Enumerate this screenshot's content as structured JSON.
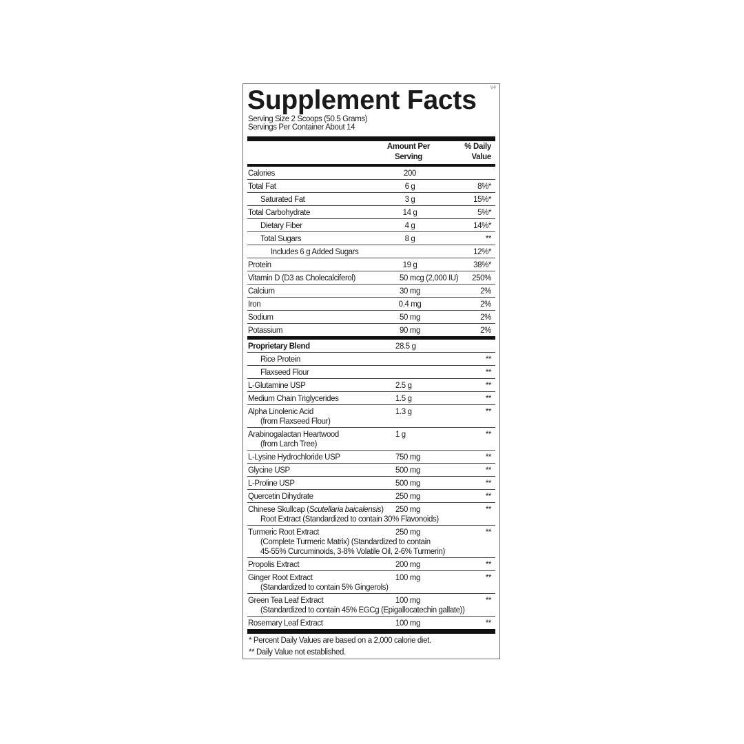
{
  "label": {
    "title": "Supplement Facts",
    "version": "V4",
    "serving_size": "Serving Size 2 Scoops (50.5 Grams)",
    "servings_per_container": "Servings Per Container  About 14",
    "header": {
      "amount_line1": "Amount Per",
      "amount_line2": "Serving",
      "dv_line1": "% Daily",
      "dv_line2": "Value"
    },
    "nutrients": [
      {
        "name": "Calories",
        "amount": "200",
        "dv": "",
        "indent": 0
      },
      {
        "name": "Total Fat",
        "amount": "6 g",
        "dv": "8%*",
        "indent": 0
      },
      {
        "name": "Saturated Fat",
        "amount": "3 g",
        "dv": "15%*",
        "indent": 1
      },
      {
        "name": "Total Carbohydrate",
        "amount": "14 g",
        "dv": "5%*",
        "indent": 0
      },
      {
        "name": "Dietary Fiber",
        "amount": "4 g",
        "dv": "14%*",
        "indent": 1
      },
      {
        "name": "Total Sugars",
        "amount": "8 g",
        "dv": "**",
        "indent": 1
      },
      {
        "name": "Includes 6 g Added Sugars",
        "amount": "",
        "dv": "12%*",
        "indent": 2
      },
      {
        "name": "Protein",
        "amount": "19 g",
        "dv": "38%*",
        "indent": 0
      },
      {
        "name": "Vitamin D (D3 as Cholecalciferol)",
        "amount": "50 mcg (2,000 IU)",
        "dv": "250%",
        "indent": 0
      },
      {
        "name": "Calcium",
        "amount": "30 mg",
        "dv": "2%",
        "indent": 0
      },
      {
        "name": "Iron",
        "amount": "0.4 mg",
        "dv": "2%",
        "indent": 0
      },
      {
        "name": "Sodium",
        "amount": "50 mg",
        "dv": "2%",
        "indent": 0
      },
      {
        "name": "Potassium",
        "amount": "90 mg",
        "dv": "2%",
        "indent": 0
      }
    ],
    "blend": [
      {
        "name": "Proprietary Blend",
        "amount": "28.5 g",
        "dv": "",
        "indent": 0,
        "bold": true
      },
      {
        "name": "Rice Protein",
        "amount": "",
        "dv": "**",
        "indent": 1
      },
      {
        "name": "Flaxseed Flour",
        "amount": "",
        "dv": "**",
        "indent": 1
      },
      {
        "name": "L-Glutamine USP",
        "amount": "2.5 g",
        "dv": "**",
        "indent": 0
      },
      {
        "name": "Medium Chain Triglycerides",
        "amount": "1.5 g",
        "dv": "**",
        "indent": 0
      },
      {
        "name": "Alpha Linolenic Acid",
        "sub": [
          "(from Flaxseed Flour)"
        ],
        "amount": "1.3 g",
        "dv": "**",
        "indent": 0
      },
      {
        "name": "Arabinogalactan Heartwood",
        "sub": [
          "(from Larch Tree)"
        ],
        "amount": "1 g",
        "dv": "**",
        "indent": 0
      },
      {
        "name": "L-Lysine Hydrochloride USP",
        "amount": "750 mg",
        "dv": "**",
        "indent": 0
      },
      {
        "name": "Glycine USP",
        "amount": "500 mg",
        "dv": "**",
        "indent": 0
      },
      {
        "name": "L-Proline USP",
        "amount": "500 mg",
        "dv": "**",
        "indent": 0
      },
      {
        "name": "Quercetin Dihydrate",
        "amount": "250 mg",
        "dv": "**",
        "indent": 0
      },
      {
        "name": "Chinese Skullcap (",
        "name_italic": "Scutellaria baicalensis",
        "name_suffix": ")",
        "sub": [
          "Root Extract (Standardized to contain 30% Flavonoids)"
        ],
        "amount": "250 mg",
        "dv": "**",
        "indent": 0
      },
      {
        "name": "Turmeric Root Extract",
        "sub": [
          "(Complete Turmeric Matrix) (Standardized to contain",
          "45-55% Curcuminoids, 3-8% Volatile Oil, 2-6% Turmerin)"
        ],
        "amount": "250 mg",
        "dv": "**",
        "indent": 0
      },
      {
        "name": "Propolis Extract",
        "amount": "200 mg",
        "dv": "**",
        "indent": 0
      },
      {
        "name": "Ginger Root Extract",
        "sub": [
          "(Standardized to contain 5% Gingerols)"
        ],
        "amount": "100 mg",
        "dv": "**",
        "indent": 0
      },
      {
        "name": "Green Tea Leaf Extract",
        "sub": [
          "(Standardized to contain 45% EGCg (Epigallocatechin gallate))"
        ],
        "amount": "100 mg",
        "dv": "**",
        "indent": 0
      },
      {
        "name": "Rosemary Leaf Extract",
        "amount": "100 mg",
        "dv": "**",
        "indent": 0
      }
    ],
    "footnotes": [
      "* Percent Daily Values are based on a 2,000 calorie diet.",
      "** Daily Value not established."
    ]
  }
}
